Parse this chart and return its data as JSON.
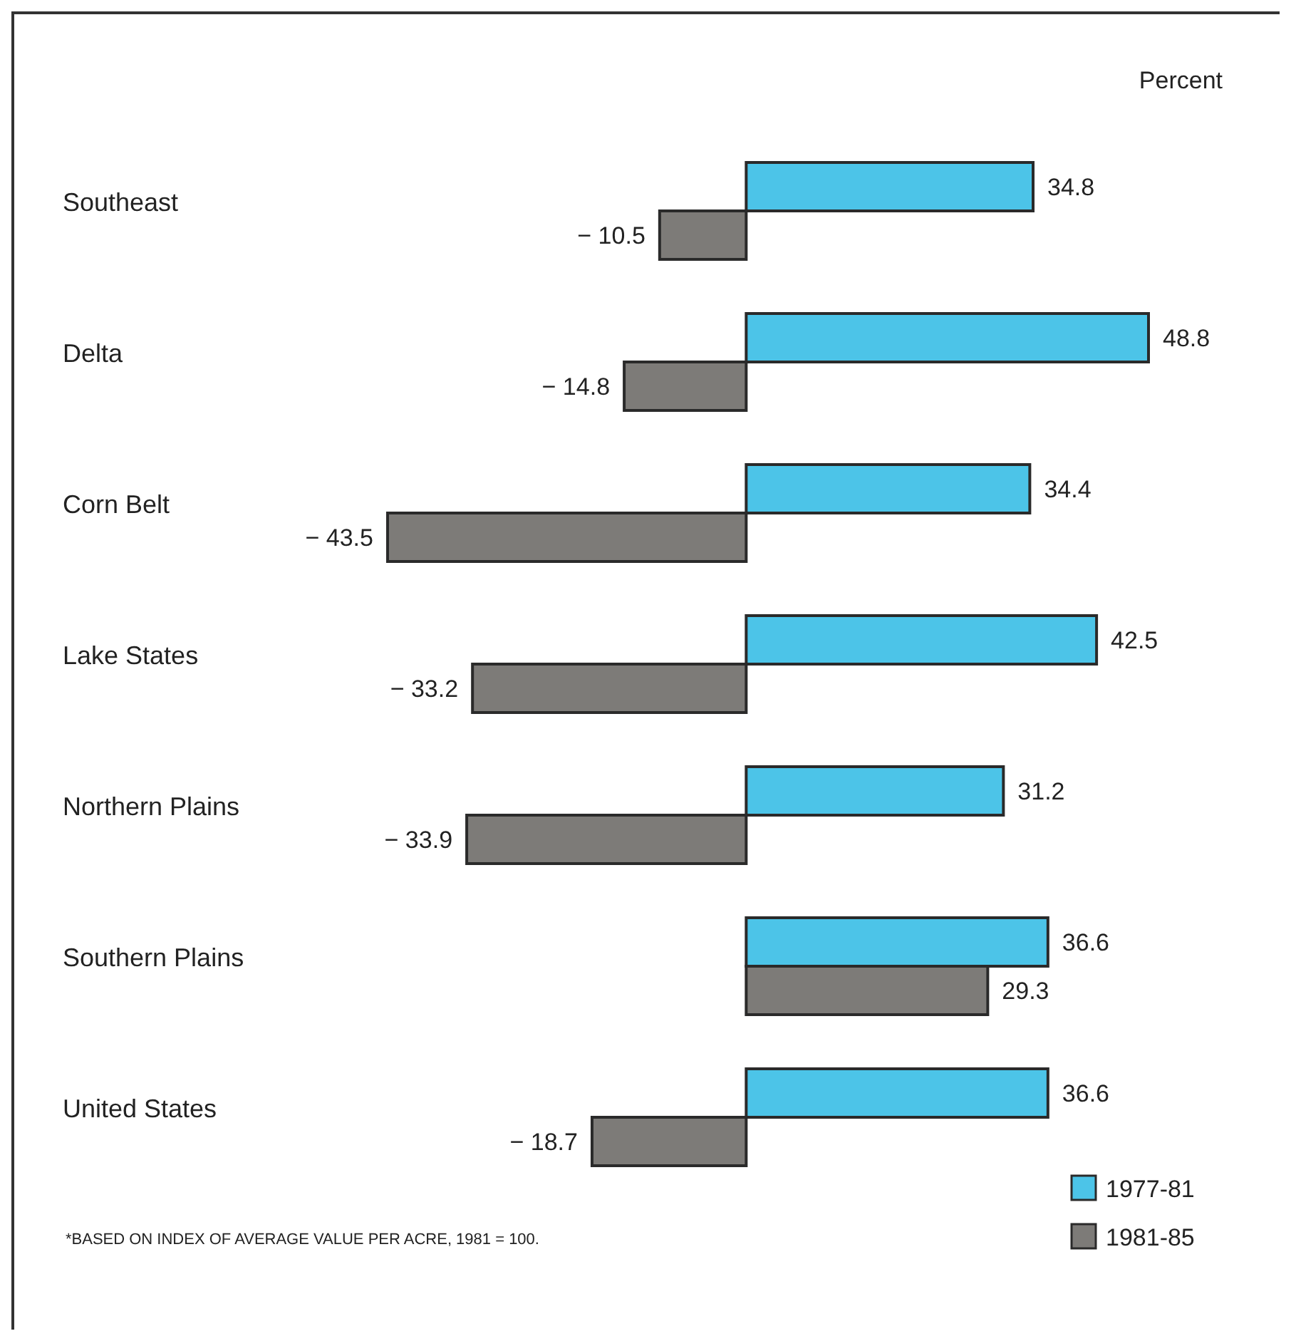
{
  "chart_data": {
    "type": "bar",
    "orientation": "horizontal",
    "xlabel": "Percent",
    "categories": [
      "Southeast",
      "Delta",
      "Corn Belt",
      "Lake States",
      "Northern Plains",
      "Southern Plains",
      "United States"
    ],
    "series": [
      {
        "name": "1977-81",
        "color": "#4cc4e8",
        "values": [
          34.8,
          48.8,
          34.4,
          42.5,
          31.2,
          36.6,
          36.6
        ]
      },
      {
        "name": "1981-85",
        "color": "#7d7b78",
        "values": [
          -10.5,
          -14.8,
          -43.5,
          -33.2,
          -33.9,
          29.3,
          -18.7
        ]
      }
    ],
    "data_labels": true,
    "legend": "bottom right",
    "annotations": [
      "*BASED ON INDEX OF AVERAGE VALUE PER ACRE, 1981 = 100."
    ]
  }
}
